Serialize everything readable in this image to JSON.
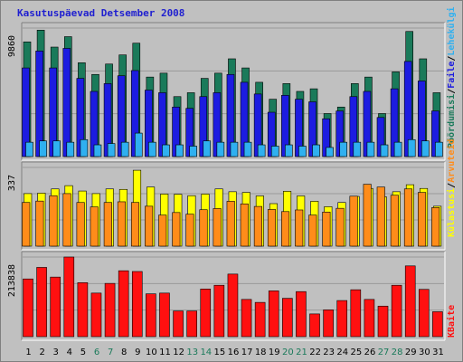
{
  "window": {
    "title": "Kasutuspäevad Detsember 2008"
  },
  "colors": {
    "background": "#c0c0c0",
    "panel": "#c0c0c0",
    "title": "#1f1fd0",
    "visits": "#1a7a5a",
    "pages": "#1c1ce0",
    "files": "#2fb0f0",
    "hits": "#ffff00",
    "sites": "#ff8c1a",
    "kbytes": "#ff1010",
    "weekday_label": "#000000",
    "weekend_label": "#1a7a5a"
  },
  "legend": {
    "top": [
      {
        "text": "Pöördumisi",
        "color": "#1a7a5a"
      },
      {
        "text": "/",
        "color": "#000000"
      },
      {
        "text": "Faile",
        "color": "#1c1ce0"
      },
      {
        "text": "/",
        "color": "#000000"
      },
      {
        "text": "Lehekülgi",
        "color": "#2fb0f0"
      }
    ],
    "middle": [
      {
        "text": "Külastusi",
        "color": "#ffff00"
      },
      {
        "text": "/",
        "color": "#000000"
      },
      {
        "text": "Arvuteid",
        "color": "#ff8c1a"
      }
    ],
    "bottom": [
      {
        "text": "KBaite",
        "color": "#ff1010"
      }
    ]
  },
  "chart_data": [
    {
      "type": "bar",
      "panel": "hits-files-pages",
      "categories": [
        "1",
        "2",
        "3",
        "4",
        "5",
        "6",
        "7",
        "8",
        "9",
        "10",
        "11",
        "12",
        "13",
        "14",
        "15",
        "16",
        "17",
        "18",
        "19",
        "20",
        "21",
        "22",
        "23",
        "24",
        "25",
        "26",
        "27",
        "28",
        "29",
        "30",
        "31"
      ],
      "weekend": [
        6,
        7,
        13,
        14,
        20,
        21,
        27,
        28
      ],
      "ylim": [
        0,
        9860
      ],
      "ytick_label": "9860",
      "series": [
        {
          "name": "Pöördumisi",
          "color": "#1a7a5a",
          "values": [
            8800,
            9700,
            8400,
            9200,
            7200,
            6300,
            7100,
            7800,
            8700,
            6100,
            6400,
            4600,
            4900,
            6000,
            6400,
            7500,
            6800,
            5700,
            4400,
            5600,
            5000,
            5200,
            3300,
            3800,
            5600,
            6100,
            3300,
            6500,
            9600,
            7500,
            4900
          ]
        },
        {
          "name": "Faile",
          "color": "#1c1ce0",
          "values": [
            6800,
            8100,
            6800,
            8300,
            6000,
            5000,
            5600,
            6200,
            6600,
            5100,
            4900,
            3800,
            3700,
            4600,
            4900,
            6300,
            5700,
            4800,
            3400,
            4700,
            4400,
            4200,
            2900,
            3500,
            4600,
            5000,
            3000,
            5200,
            7300,
            5800,
            3500
          ]
        },
        {
          "name": "Lehekülgi",
          "color": "#2fb0f0",
          "values": [
            1100,
            1200,
            1200,
            1100,
            1300,
            900,
            1000,
            1100,
            1800,
            1100,
            900,
            900,
            800,
            1200,
            1100,
            1100,
            1100,
            900,
            800,
            900,
            800,
            900,
            700,
            1100,
            1100,
            1100,
            900,
            1100,
            1300,
            1200,
            1100
          ]
        }
      ]
    },
    {
      "type": "bar",
      "panel": "visits-sites",
      "categories": [
        "1",
        "2",
        "3",
        "4",
        "5",
        "6",
        "7",
        "8",
        "9",
        "10",
        "11",
        "12",
        "13",
        "14",
        "15",
        "16",
        "17",
        "18",
        "19",
        "20",
        "21",
        "22",
        "23",
        "24",
        "25",
        "26",
        "27",
        "28",
        "29",
        "30",
        "31"
      ],
      "ylim": [
        0,
        337
      ],
      "ytick_label": "337",
      "series": [
        {
          "name": "Külastusi",
          "color": "#ffff00",
          "values": [
            225,
            227,
            245,
            259,
            236,
            225,
            245,
            243,
            325,
            253,
            223,
            222,
            216,
            223,
            245,
            233,
            230,
            215,
            182,
            235,
            215,
            192,
            169,
            187,
            213,
            247,
            211,
            233,
            263,
            247,
            171
          ]
        },
        {
          "name": "Arvuteid",
          "color": "#ff8c1a",
          "values": [
            187,
            193,
            216,
            225,
            187,
            168,
            187,
            190,
            187,
            171,
            133,
            144,
            137,
            156,
            161,
            192,
            181,
            170,
            157,
            148,
            155,
            133,
            146,
            162,
            214,
            265,
            253,
            218,
            245,
            230,
            165
          ]
        }
      ]
    },
    {
      "type": "bar",
      "panel": "kbytes",
      "categories": [
        "1",
        "2",
        "3",
        "4",
        "5",
        "6",
        "7",
        "8",
        "9",
        "10",
        "11",
        "12",
        "13",
        "14",
        "15",
        "16",
        "17",
        "18",
        "19",
        "20",
        "21",
        "22",
        "23",
        "24",
        "25",
        "26",
        "27",
        "28",
        "29",
        "30",
        "31"
      ],
      "ylim": [
        0,
        213838
      ],
      "ytick_label": "213838",
      "series": [
        {
          "name": "KBaite",
          "color": "#ff1010",
          "values": [
            155000,
            186000,
            160000,
            213838,
            145000,
            117000,
            143000,
            177000,
            175000,
            115000,
            117000,
            69000,
            69000,
            128000,
            138000,
            168000,
            100000,
            92000,
            123000,
            103000,
            121000,
            61000,
            72000,
            97000,
            126000,
            100000,
            82000,
            138000,
            190000,
            127000,
            67000
          ]
        }
      ]
    }
  ]
}
